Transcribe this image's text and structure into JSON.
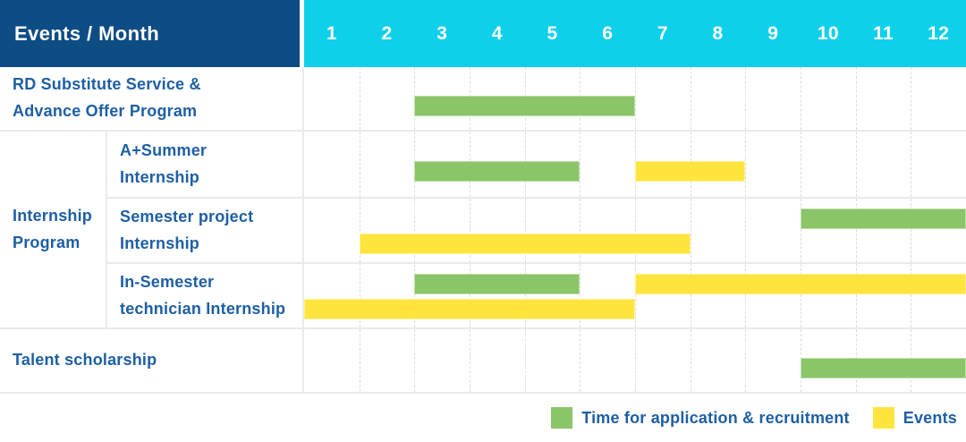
{
  "header": {
    "label": "Events / Month",
    "months": [
      "1",
      "2",
      "3",
      "4",
      "5",
      "6",
      "7",
      "8",
      "9",
      "10",
      "11",
      "12"
    ]
  },
  "colors": {
    "navy": "#0e4c84",
    "cyan": "#0fd0ea",
    "green": "#8ac568",
    "yellow": "#ffe53d",
    "label_text": "#1e5fa4"
  },
  "legend": [
    {
      "key": "application",
      "label": "Time for application & recruitment",
      "color": "#8ac568"
    },
    {
      "key": "events",
      "label": "Events",
      "color": "#ffe53d"
    }
  ],
  "chart_data": {
    "type": "gantt",
    "x_axis": {
      "label": "Month",
      "ticks": [
        "1",
        "2",
        "3",
        "4",
        "5",
        "6",
        "7",
        "8",
        "9",
        "10",
        "11",
        "12"
      ],
      "range": [
        1,
        13
      ]
    },
    "series": [
      {
        "key": "application",
        "name": "Time for application & recruitment",
        "color": "#8ac568"
      },
      {
        "key": "events",
        "name": "Events",
        "color": "#ffe53d"
      }
    ],
    "group": {
      "label": "Internship\nProgram",
      "start_index": 1,
      "rows": 3
    },
    "rows": [
      {
        "label": "RD Substitute Service &\nAdvance Offer Program",
        "in_group": false,
        "bars": [
          {
            "series": "application",
            "start": 3,
            "end": 7,
            "lane": "center"
          }
        ]
      },
      {
        "label": "A+Summer\nInternship",
        "in_group": true,
        "bars": [
          {
            "series": "application",
            "start": 3,
            "end": 6,
            "lane": "center"
          },
          {
            "series": "events",
            "start": 7,
            "end": 9,
            "lane": "center"
          }
        ]
      },
      {
        "label": "Semester project\nInternship",
        "in_group": true,
        "bars": [
          {
            "series": "application",
            "start": 10,
            "end": 13,
            "lane": "top"
          },
          {
            "series": "events",
            "start": 2,
            "end": 8,
            "lane": "bottom"
          }
        ]
      },
      {
        "label": "In-Semester\ntechnician Internship",
        "in_group": true,
        "bars": [
          {
            "series": "application",
            "start": 3,
            "end": 6,
            "lane": "top"
          },
          {
            "series": "events",
            "start": 7,
            "end": 13,
            "lane": "top"
          },
          {
            "series": "events",
            "start": 1,
            "end": 7,
            "lane": "bottom"
          }
        ]
      },
      {
        "label": "Talent scholarship",
        "in_group": false,
        "bars": [
          {
            "series": "application",
            "start": 10,
            "end": 13,
            "lane": "center"
          }
        ]
      }
    ]
  }
}
